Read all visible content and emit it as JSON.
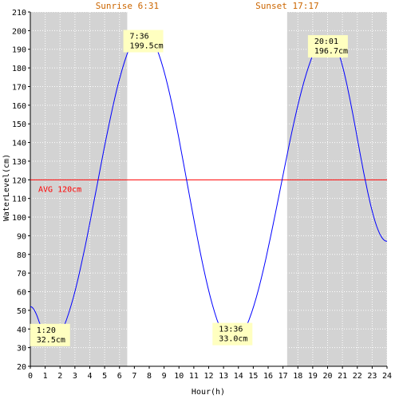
{
  "chart_data": {
    "type": "line",
    "xlabel": "Hour(h)",
    "ylabel": "WaterLevel(cm)",
    "xlim": [
      0,
      24
    ],
    "ylim": [
      20,
      210
    ],
    "x_ticks": [
      0,
      1,
      2,
      3,
      4,
      5,
      6,
      7,
      8,
      9,
      10,
      11,
      12,
      13,
      14,
      15,
      16,
      17,
      18,
      19,
      20,
      21,
      22,
      23,
      24
    ],
    "y_ticks": [
      20,
      30,
      40,
      50,
      60,
      70,
      80,
      90,
      100,
      110,
      120,
      130,
      140,
      150,
      160,
      170,
      180,
      190,
      200,
      210
    ],
    "grid": true,
    "sunrise": {
      "label": "Sunrise 6:31",
      "hour": 6.52
    },
    "sunset": {
      "label": "Sunset 17:17",
      "hour": 17.28
    },
    "average": {
      "label": "AVG 120cm",
      "value": 120
    },
    "series": [
      {
        "color": "#0000ff",
        "x": [
          0,
          1.33,
          7.6,
          13.6,
          20.02,
          24
        ],
        "y": [
          52,
          32.5,
          199.5,
          33.0,
          196.7,
          87
        ]
      }
    ],
    "annotations": [
      {
        "time": "1:20",
        "value": "32.5cm",
        "hour": 1.33,
        "level": 32.5
      },
      {
        "time": "7:36",
        "value": "199.5cm",
        "hour": 7.6,
        "level": 199.5
      },
      {
        "time": "13:36",
        "value": "33.0cm",
        "hour": 13.6,
        "level": 33.0
      },
      {
        "time": "20:01",
        "value": "196.7cm",
        "hour": 20.02,
        "level": 196.7
      }
    ],
    "colors": {
      "night_shade": "#d3d3d3",
      "sun_label": "#cc6600",
      "average_line": "#ff0000",
      "annotation_box": "#ffffc0"
    }
  }
}
